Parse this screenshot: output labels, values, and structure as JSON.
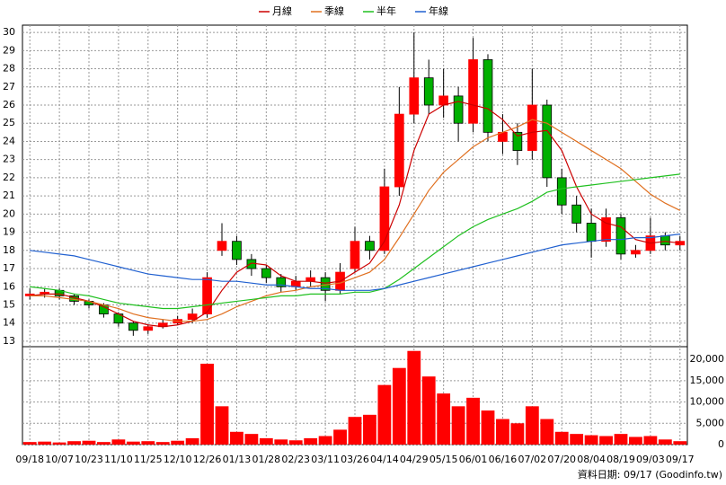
{
  "chart_data": [
    {
      "type": "candlestick",
      "legend": "top",
      "grid": true,
      "note": "資料日期: 09/17 (Goodinfo.tw)",
      "categories": [
        "09/18",
        null,
        "10/07",
        null,
        "10/23",
        null,
        "11/10",
        null,
        "11/25",
        null,
        "12/10",
        null,
        "12/26",
        null,
        "01/13",
        null,
        "01/28",
        null,
        "02/23",
        null,
        "03/11",
        null,
        "03/26",
        null,
        "04/14",
        null,
        "04/29",
        null,
        "05/15",
        null,
        "06/01",
        null,
        "06/16",
        null,
        "07/02",
        null,
        "07/20",
        null,
        "08/04",
        null,
        "08/19",
        null,
        "09/03",
        null,
        "09/17"
      ],
      "open": [
        15.5,
        15.6,
        15.8,
        15.5,
        15.2,
        15.0,
        14.5,
        14.0,
        13.6,
        13.8,
        14.0,
        14.2,
        14.5,
        18.0,
        18.5,
        17.5,
        17.0,
        16.5,
        16.0,
        16.3,
        16.5,
        15.8,
        17.0,
        18.5,
        18.0,
        21.5,
        25.5,
        27.5,
        26.0,
        26.5,
        25.0,
        28.5,
        24.0,
        24.5,
        23.5,
        26.0,
        22.0,
        20.5,
        19.5,
        18.5,
        19.8,
        17.8,
        18.0,
        18.8,
        18.3
      ],
      "high": [
        15.9,
        15.9,
        15.9,
        15.6,
        15.3,
        15.1,
        14.6,
        14.1,
        13.9,
        14.2,
        14.4,
        14.8,
        16.8,
        19.5,
        18.8,
        17.8,
        17.2,
        16.7,
        16.6,
        16.9,
        16.8,
        17.3,
        19.3,
        18.8,
        22.5,
        27.0,
        30.0,
        28.5,
        28.0,
        27.0,
        29.7,
        28.8,
        25.5,
        25.0,
        28.0,
        26.3,
        22.5,
        21.0,
        20.3,
        20.3,
        20.0,
        18.3,
        19.8,
        19.0,
        18.8
      ],
      "low": [
        15.3,
        15.4,
        15.3,
        15.0,
        14.8,
        14.3,
        13.8,
        13.3,
        13.4,
        13.7,
        13.9,
        14.0,
        14.3,
        17.7,
        17.2,
        16.6,
        16.2,
        15.7,
        15.8,
        16.0,
        15.2,
        15.6,
        16.8,
        17.5,
        17.8,
        21.0,
        25.0,
        25.5,
        25.3,
        24.0,
        24.5,
        24.0,
        23.3,
        22.7,
        23.0,
        21.5,
        20.0,
        19.0,
        17.6,
        18.2,
        17.5,
        17.6,
        17.8,
        18.0,
        18.0
      ],
      "close": [
        15.6,
        15.7,
        15.5,
        15.2,
        15.0,
        14.5,
        14.0,
        13.6,
        13.8,
        14.0,
        14.2,
        14.5,
        16.5,
        18.5,
        17.5,
        17.0,
        16.5,
        16.0,
        16.3,
        16.5,
        15.8,
        16.8,
        18.5,
        18.0,
        21.5,
        25.5,
        27.5,
        26.0,
        26.5,
        25.0,
        28.5,
        24.5,
        24.5,
        23.5,
        26.0,
        22.0,
        20.5,
        19.5,
        18.5,
        19.8,
        17.8,
        18.0,
        18.8,
        18.3,
        18.5
      ],
      "up_color": "#ff0000",
      "down_color": "#00b000",
      "series": [
        {
          "name": "月線",
          "color": "#cc0000",
          "values": [
            15.5,
            15.6,
            15.6,
            15.4,
            15.2,
            14.9,
            14.5,
            14.1,
            13.9,
            13.8,
            13.9,
            14.1,
            14.6,
            15.8,
            16.8,
            17.3,
            17.2,
            16.6,
            16.3,
            16.3,
            16.2,
            16.3,
            16.8,
            17.3,
            18.5,
            20.5,
            23.5,
            25.5,
            26.0,
            26.2,
            26.0,
            25.8,
            25.2,
            24.3,
            24.5,
            24.6,
            23.5,
            21.5,
            20.0,
            19.5,
            19.3,
            18.6,
            18.4,
            18.5,
            18.4
          ]
        },
        {
          "name": "季線",
          "color": "#e07020",
          "values": [
            15.5,
            15.5,
            15.4,
            15.3,
            15.2,
            15.0,
            14.8,
            14.5,
            14.3,
            14.2,
            14.1,
            14.1,
            14.2,
            14.5,
            14.9,
            15.2,
            15.5,
            15.7,
            15.8,
            16.0,
            16.1,
            16.2,
            16.5,
            16.8,
            17.5,
            18.7,
            20.0,
            21.3,
            22.3,
            23.0,
            23.7,
            24.2,
            24.5,
            24.8,
            25.2,
            25.0,
            24.5,
            24.0,
            23.5,
            23.0,
            22.5,
            21.8,
            21.1,
            20.6,
            20.2
          ]
        },
        {
          "name": "半年",
          "color": "#20c020",
          "values": [
            16.0,
            15.9,
            15.8,
            15.6,
            15.5,
            15.3,
            15.1,
            15.0,
            14.9,
            14.8,
            14.8,
            14.9,
            15.0,
            15.1,
            15.2,
            15.3,
            15.4,
            15.5,
            15.5,
            15.6,
            15.6,
            15.6,
            15.7,
            15.7,
            15.9,
            16.4,
            17.0,
            17.6,
            18.2,
            18.8,
            19.3,
            19.7,
            20.0,
            20.3,
            20.7,
            21.2,
            21.4,
            21.5,
            21.6,
            21.7,
            21.8,
            21.9,
            22.0,
            22.1,
            22.2
          ]
        },
        {
          "name": "年線",
          "color": "#2060d0",
          "values": [
            18.0,
            17.9,
            17.8,
            17.7,
            17.5,
            17.3,
            17.1,
            16.9,
            16.7,
            16.6,
            16.5,
            16.4,
            16.4,
            16.3,
            16.3,
            16.2,
            16.1,
            16.1,
            16.0,
            15.9,
            15.9,
            15.8,
            15.8,
            15.8,
            15.9,
            16.1,
            16.3,
            16.5,
            16.7,
            16.9,
            17.1,
            17.3,
            17.5,
            17.7,
            17.9,
            18.1,
            18.3,
            18.4,
            18.5,
            18.6,
            18.6,
            18.7,
            18.7,
            18.8,
            18.9
          ]
        }
      ],
      "ylim": [
        12.7,
        30.4
      ],
      "yticks": [
        13,
        14,
        15,
        16,
        17,
        18,
        19,
        20,
        21,
        22,
        23,
        24,
        25,
        26,
        27,
        28,
        29,
        30
      ]
    },
    {
      "type": "bar",
      "color": "#ff0000",
      "grid": true,
      "values": [
        600,
        700,
        500,
        800,
        900,
        600,
        1200,
        700,
        800,
        600,
        900,
        1500,
        19000,
        9000,
        3000,
        2500,
        1500,
        1200,
        1000,
        1500,
        2000,
        3500,
        6500,
        7000,
        14000,
        18000,
        22000,
        16000,
        12000,
        9000,
        11000,
        8000,
        6000,
        5000,
        9000,
        6000,
        3000,
        2500,
        2200,
        2000,
        2500,
        1800,
        2000,
        1200,
        800
      ],
      "ylim": [
        0,
        23000
      ],
      "yticks": [
        0,
        {
          "value": 5000,
          "label": "5,000"
        },
        {
          "value": 10000,
          "label": "10,000"
        },
        {
          "value": 15000,
          "label": "15,000"
        },
        {
          "value": 20000,
          "label": "20,000"
        }
      ]
    }
  ]
}
